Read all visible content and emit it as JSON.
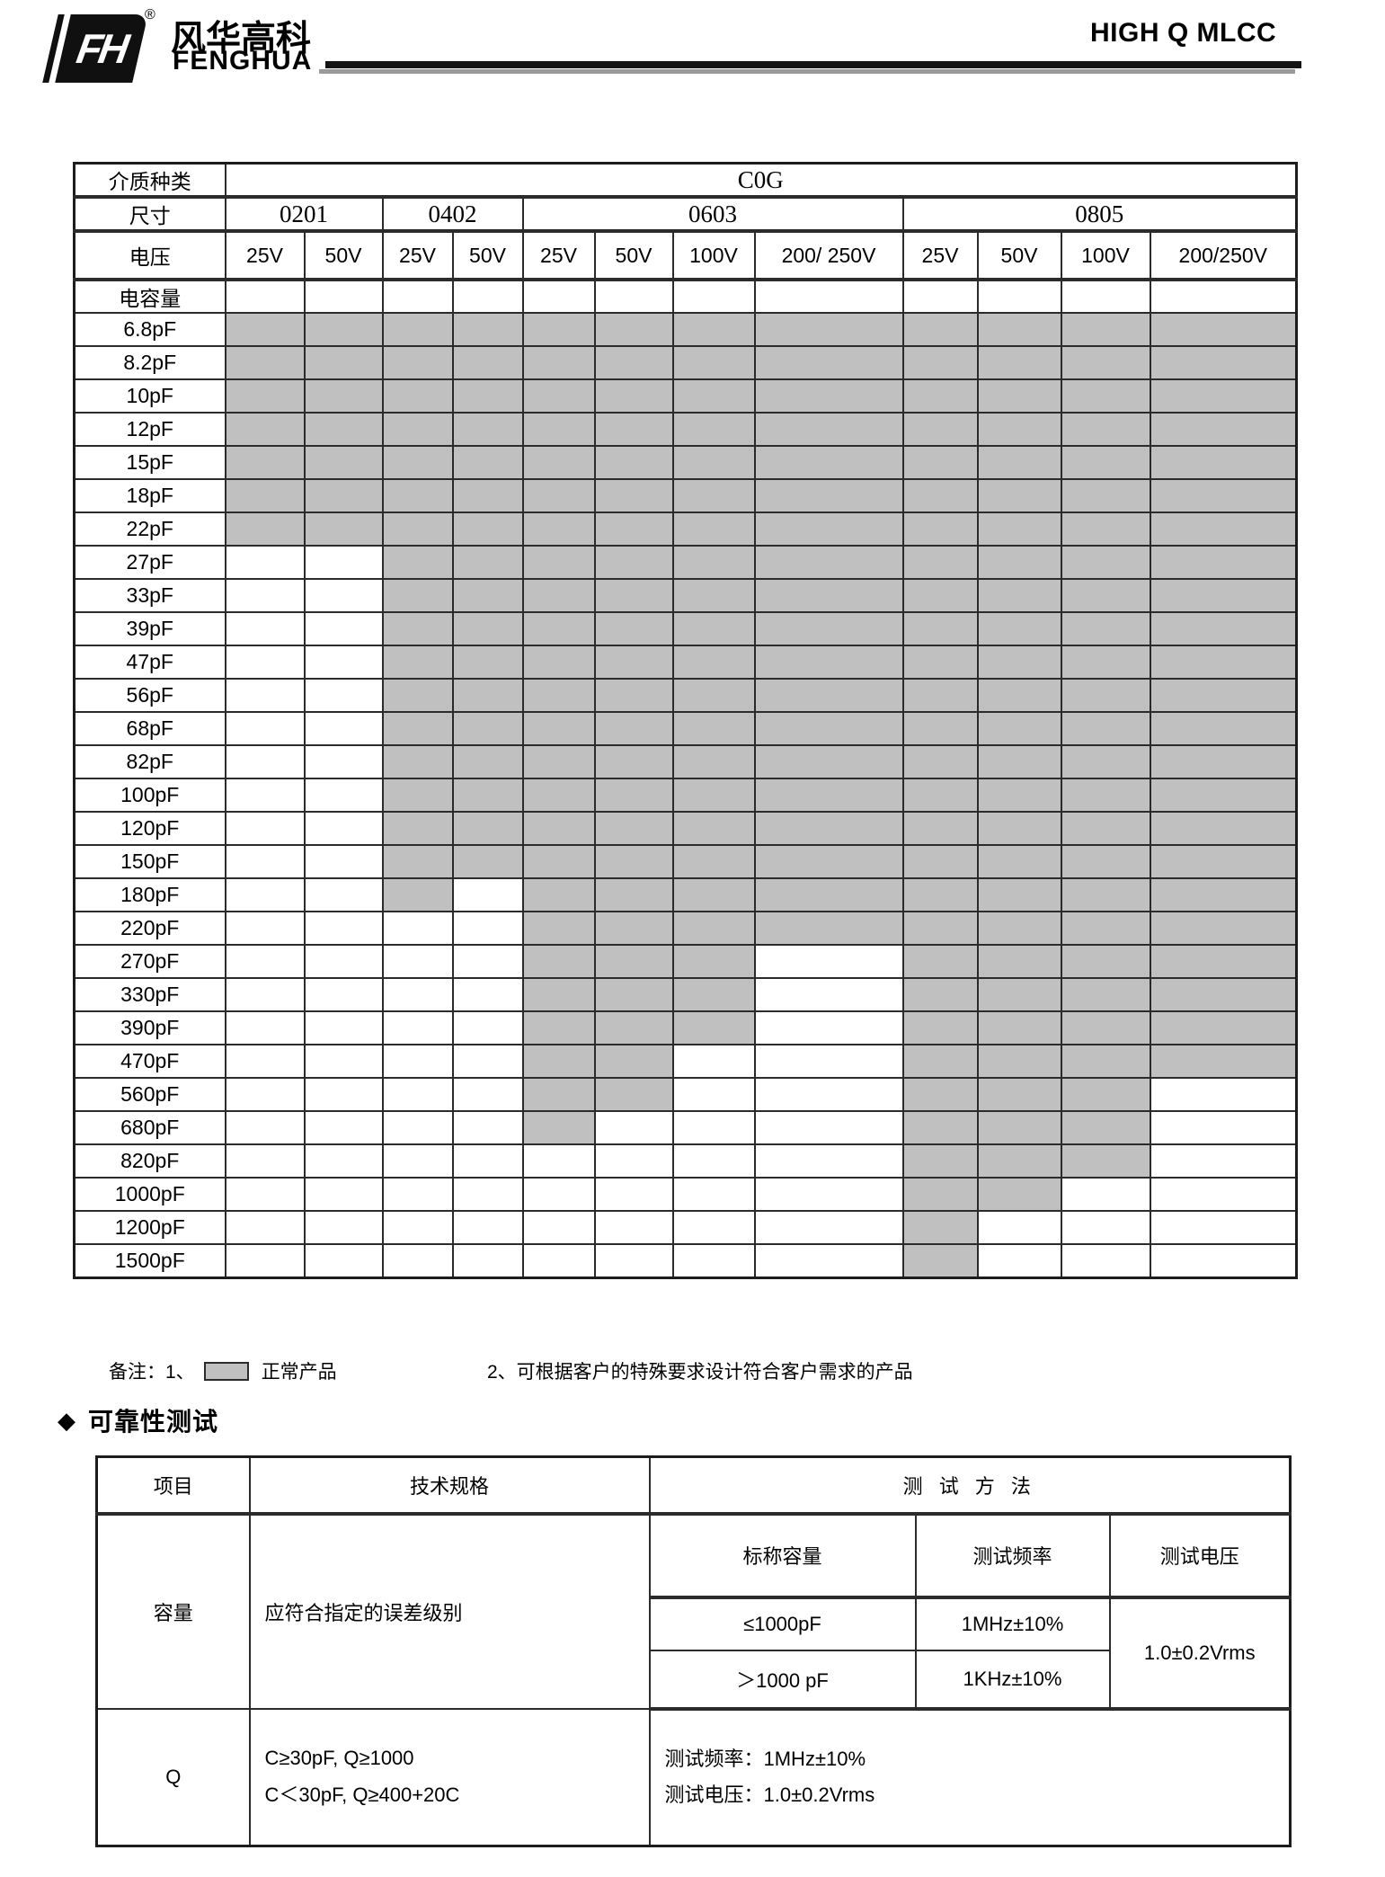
{
  "header": {
    "brand_cn": "风华高科",
    "brand_en": "FENGHUA",
    "registered_mark": "®",
    "monogram": "FH",
    "doc_title": "HIGH Q MLCC"
  },
  "availability_table": {
    "row1_label": "介质种类",
    "dielectric": "C0G",
    "row2_label": "尺寸",
    "sizes": [
      {
        "name": "0201"
      },
      {
        "name": "0402"
      },
      {
        "name": "0603"
      },
      {
        "name": "0805"
      }
    ],
    "row3_label": "电压",
    "voltages": [
      "25V",
      "50V",
      "25V",
      "50V",
      "25V",
      "50V",
      "100V",
      "200/ 250V",
      "25V",
      "50V",
      "100V",
      "200/250V"
    ],
    "row4_label": "电容量",
    "rows": [
      {
        "cap": "6.8pF",
        "cells": [
          1,
          1,
          1,
          1,
          1,
          1,
          1,
          1,
          1,
          1,
          1,
          1
        ]
      },
      {
        "cap": "8.2pF",
        "cells": [
          1,
          1,
          1,
          1,
          1,
          1,
          1,
          1,
          1,
          1,
          1,
          1
        ]
      },
      {
        "cap": "10pF",
        "cells": [
          1,
          1,
          1,
          1,
          1,
          1,
          1,
          1,
          1,
          1,
          1,
          1
        ]
      },
      {
        "cap": "12pF",
        "cells": [
          1,
          1,
          1,
          1,
          1,
          1,
          1,
          1,
          1,
          1,
          1,
          1
        ]
      },
      {
        "cap": "15pF",
        "cells": [
          1,
          1,
          1,
          1,
          1,
          1,
          1,
          1,
          1,
          1,
          1,
          1
        ]
      },
      {
        "cap": "18pF",
        "cells": [
          1,
          1,
          1,
          1,
          1,
          1,
          1,
          1,
          1,
          1,
          1,
          1
        ]
      },
      {
        "cap": "22pF",
        "cells": [
          1,
          1,
          1,
          1,
          1,
          1,
          1,
          1,
          1,
          1,
          1,
          1
        ]
      },
      {
        "cap": "27pF",
        "cells": [
          0,
          0,
          1,
          1,
          1,
          1,
          1,
          1,
          1,
          1,
          1,
          1
        ]
      },
      {
        "cap": "33pF",
        "cells": [
          0,
          0,
          1,
          1,
          1,
          1,
          1,
          1,
          1,
          1,
          1,
          1
        ]
      },
      {
        "cap": "39pF",
        "cells": [
          0,
          0,
          1,
          1,
          1,
          1,
          1,
          1,
          1,
          1,
          1,
          1
        ]
      },
      {
        "cap": "47pF",
        "cells": [
          0,
          0,
          1,
          1,
          1,
          1,
          1,
          1,
          1,
          1,
          1,
          1
        ]
      },
      {
        "cap": "56pF",
        "cells": [
          0,
          0,
          1,
          1,
          1,
          1,
          1,
          1,
          1,
          1,
          1,
          1
        ]
      },
      {
        "cap": "68pF",
        "cells": [
          0,
          0,
          1,
          1,
          1,
          1,
          1,
          1,
          1,
          1,
          1,
          1
        ]
      },
      {
        "cap": "82pF",
        "cells": [
          0,
          0,
          1,
          1,
          1,
          1,
          1,
          1,
          1,
          1,
          1,
          1
        ]
      },
      {
        "cap": "100pF",
        "cells": [
          0,
          0,
          1,
          1,
          1,
          1,
          1,
          1,
          1,
          1,
          1,
          1
        ]
      },
      {
        "cap": "120pF",
        "cells": [
          0,
          0,
          1,
          1,
          1,
          1,
          1,
          1,
          1,
          1,
          1,
          1
        ]
      },
      {
        "cap": "150pF",
        "cells": [
          0,
          0,
          1,
          1,
          1,
          1,
          1,
          1,
          1,
          1,
          1,
          1
        ]
      },
      {
        "cap": "180pF",
        "cells": [
          0,
          0,
          1,
          0,
          1,
          1,
          1,
          1,
          1,
          1,
          1,
          1
        ]
      },
      {
        "cap": "220pF",
        "cells": [
          0,
          0,
          0,
          0,
          1,
          1,
          1,
          1,
          1,
          1,
          1,
          1
        ]
      },
      {
        "cap": "270pF",
        "cells": [
          0,
          0,
          0,
          0,
          1,
          1,
          1,
          0,
          1,
          1,
          1,
          1
        ]
      },
      {
        "cap": "330pF",
        "cells": [
          0,
          0,
          0,
          0,
          1,
          1,
          1,
          0,
          1,
          1,
          1,
          1
        ]
      },
      {
        "cap": "390pF",
        "cells": [
          0,
          0,
          0,
          0,
          1,
          1,
          1,
          0,
          1,
          1,
          1,
          1
        ]
      },
      {
        "cap": "470pF",
        "cells": [
          0,
          0,
          0,
          0,
          1,
          1,
          0,
          0,
          1,
          1,
          1,
          1
        ]
      },
      {
        "cap": "560pF",
        "cells": [
          0,
          0,
          0,
          0,
          1,
          1,
          0,
          0,
          1,
          1,
          1,
          0
        ]
      },
      {
        "cap": "680pF",
        "cells": [
          0,
          0,
          0,
          0,
          1,
          0,
          0,
          0,
          1,
          1,
          1,
          0
        ]
      },
      {
        "cap": "820pF",
        "cells": [
          0,
          0,
          0,
          0,
          0,
          0,
          0,
          0,
          1,
          1,
          1,
          0
        ]
      },
      {
        "cap": "1000pF",
        "cells": [
          0,
          0,
          0,
          0,
          0,
          0,
          0,
          0,
          1,
          1,
          0,
          0
        ]
      },
      {
        "cap": "1200pF",
        "cells": [
          0,
          0,
          0,
          0,
          0,
          0,
          0,
          0,
          1,
          0,
          0,
          0
        ]
      },
      {
        "cap": "1500pF",
        "cells": [
          0,
          0,
          0,
          0,
          0,
          0,
          0,
          0,
          1,
          0,
          0,
          0
        ]
      }
    ]
  },
  "notes": {
    "prefix": "备注：1、",
    "legend_label": "正常产品",
    "note2": "2、可根据客户的特殊要求设计符合客户需求的产品"
  },
  "section": {
    "diamond": "◆",
    "title": "可靠性测试"
  },
  "reliability_table": {
    "headers": {
      "item": "项目",
      "spec": "技术规格",
      "method": "测 试 方 法"
    },
    "capacity_row": {
      "item": "容量",
      "spec": "应符合指定的误差级别",
      "sub_headers": [
        "标称容量",
        "测试频率",
        "测试电压"
      ],
      "rows": [
        {
          "range": "≤1000pF",
          "freq": "1MHz±10%"
        },
        {
          "range": "＞1000 pF",
          "freq": "1KHz±10%"
        }
      ],
      "voltage": "1.0±0.2Vrms"
    },
    "q_row": {
      "item": "Q",
      "spec_line1": "C≥30pF, Q≥1000",
      "spec_line2": "C＜30pF, Q≥400+20C",
      "method_line1": "测试频率：1MHz±10%",
      "method_line2": "测试电压：1.0±0.2Vrms"
    }
  },
  "colors": {
    "available": "#c0c0c0",
    "rule_black": "#151515",
    "rule_gray": "#9a9a9a"
  }
}
